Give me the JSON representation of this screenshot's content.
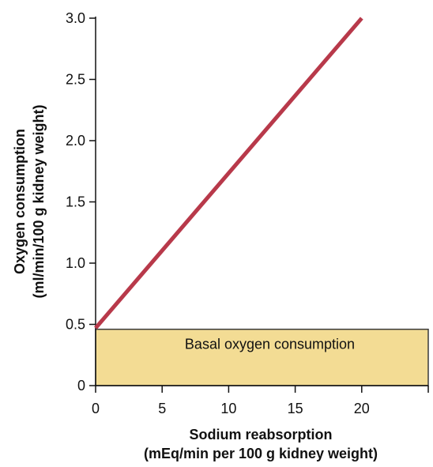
{
  "chart_data": {
    "type": "line",
    "title": "",
    "xlabel_line1": "Sodium reabsorption",
    "xlabel_line2": "(mEq/min per 100 g kidney weight)",
    "ylabel_line1": "Oxygen consumption",
    "ylabel_line2": "(ml/min/100 g kidney weight)",
    "xlim": [
      0,
      25
    ],
    "ylim": [
      0,
      3.0
    ],
    "x_ticks": [
      0,
      5,
      10,
      15,
      20
    ],
    "x_tick_labels": [
      "0",
      "5",
      "10",
      "15",
      "20"
    ],
    "y_ticks": [
      0,
      0.5,
      1.0,
      1.5,
      2.0,
      2.5,
      3.0
    ],
    "y_tick_labels": [
      "0",
      "0.5",
      "1.0",
      "1.5",
      "2.0",
      "2.5",
      "3.0"
    ],
    "grid": false,
    "series": [
      {
        "x": [
          0,
          20
        ],
        "y": [
          0.47,
          3.0
        ],
        "color": "#b8394a"
      }
    ],
    "basal_band": {
      "label": "Basal oxygen consumption",
      "y_from": 0,
      "y_to": 0.46,
      "color": "#f3dc94",
      "border_color": "#3a3a3a"
    }
  }
}
